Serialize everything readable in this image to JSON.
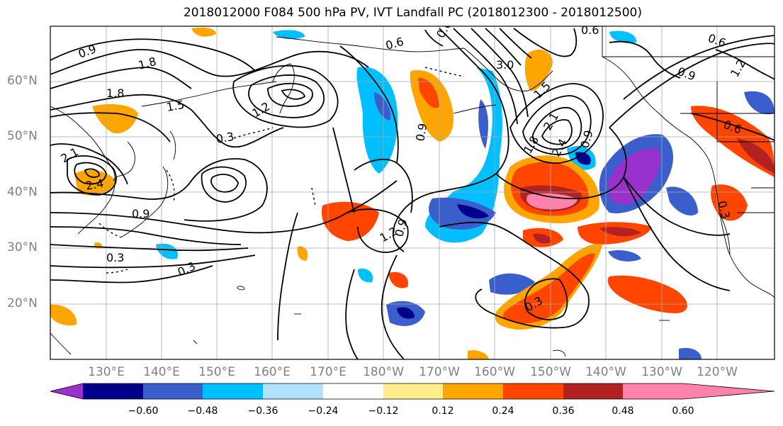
{
  "title": "2018012000 F084 500 hPa PV, IVT Landfall PC (2018012300 - 2018012500)",
  "latitude_labels": [
    "60°N",
    "50°N",
    "40°N",
    "30°N",
    "20°N"
  ],
  "longitude_labels": [
    "130°E",
    "140°E",
    "150°E",
    "160°E",
    "170°E",
    "180°W",
    "170°W",
    "160°W",
    "150°W",
    "140°W",
    "130°W",
    "120°W"
  ],
  "colorbar": {
    "tick_labels": [
      "−0.60",
      "−0.48",
      "−0.36",
      "−0.24",
      "−0.12",
      "0.12",
      "0.24",
      "0.36",
      "0.48",
      "0.60"
    ],
    "colors": [
      "#9932cc",
      "#00008b",
      "#3a5fcd",
      "#00bfff",
      "#b0e2ff",
      "#ffffff",
      "#ffec8b",
      "#ffa500",
      "#ff4500",
      "#b22222",
      "#ff82ab"
    ]
  },
  "contour_labels": [
    "0.9",
    "1.8",
    "1.8",
    "1.5",
    "0.3",
    "1.2",
    "2.4",
    "2.1",
    "0.9",
    "0.3",
    "0.3",
    "0.6",
    "3.0",
    "1.5",
    "2.1",
    "1.8",
    "2.4",
    "0.9",
    "1.2",
    "0.9",
    "0.6",
    "0.6",
    "0.9",
    "1.2",
    "0.6",
    "0.3",
    "0.3",
    "0.6",
    "0.9"
  ]
}
